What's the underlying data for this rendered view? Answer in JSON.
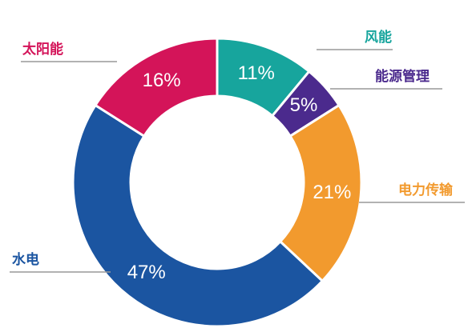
{
  "chart_data": {
    "type": "pie",
    "donut": true,
    "categories": [
      "风能",
      "能源管理",
      "电力传输",
      "水电",
      "太阳能"
    ],
    "values": [
      11,
      5,
      21,
      47,
      16
    ],
    "value_labels": [
      "11%",
      "5%",
      "21%",
      "47%",
      "16%"
    ],
    "colors": [
      "#17a59d",
      "#4b2a8d",
      "#f29a2e",
      "#1b55a1",
      "#d41459"
    ]
  }
}
